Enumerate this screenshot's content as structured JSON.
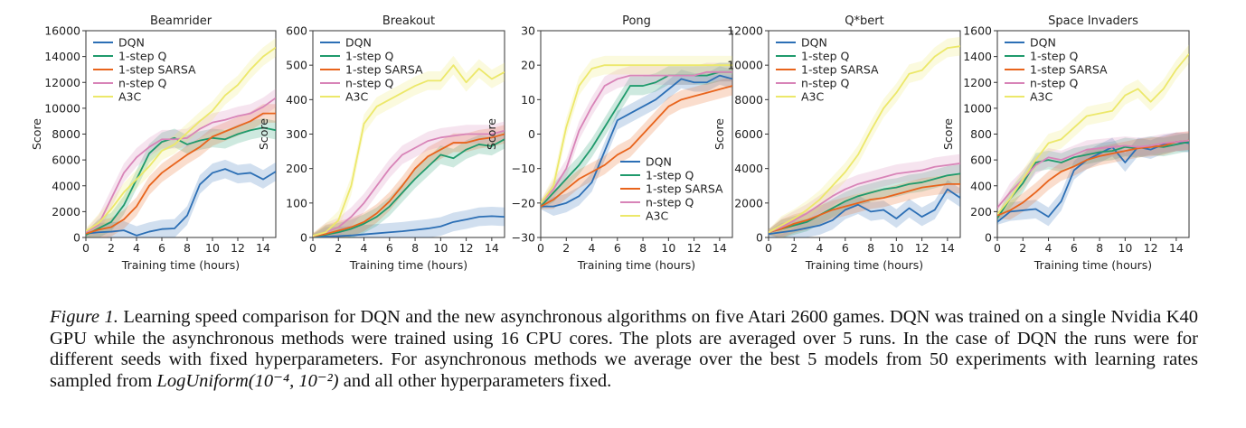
{
  "colors": {
    "DQN": "#2c6fb5",
    "1-step Q": "#1f9a6c",
    "1-step SARSA": "#e8641c",
    "n-step Q": "#d884b8",
    "A3C": "#ece86a"
  },
  "legend_order": [
    "DQN",
    "1-step Q",
    "1-step SARSA",
    "n-step Q",
    "A3C"
  ],
  "chart_data": [
    {
      "type": "line",
      "title": "Beamrider",
      "xlabel": "Training time (hours)",
      "ylabel": "Score",
      "xlim": [
        0,
        15
      ],
      "ylim": [
        0,
        16000
      ],
      "xticks": [
        0,
        2,
        4,
        6,
        8,
        10,
        12,
        14
      ],
      "yticks": [
        0,
        2000,
        4000,
        6000,
        8000,
        10000,
        12000,
        14000,
        16000
      ],
      "legend_position": "upper-left",
      "series": [
        {
          "name": "DQN",
          "x": [
            0,
            1,
            2,
            3,
            4,
            5,
            6,
            7,
            8,
            9,
            10,
            11,
            12,
            13,
            14,
            15
          ],
          "y": [
            300,
            400,
            450,
            550,
            150,
            450,
            650,
            700,
            1700,
            4100,
            5000,
            5300,
            4900,
            5000,
            4500,
            5100
          ]
        },
        {
          "name": "1-step Q",
          "x": [
            0,
            1,
            2,
            3,
            4,
            5,
            6,
            7,
            8,
            9,
            10,
            11,
            12,
            13,
            14,
            15
          ],
          "y": [
            200,
            700,
            1200,
            2500,
            4500,
            6500,
            7400,
            7700,
            7200,
            7500,
            7700,
            7600,
            8000,
            8300,
            8500,
            8300
          ]
        },
        {
          "name": "1-step SARSA",
          "x": [
            0,
            1,
            2,
            3,
            4,
            5,
            6,
            7,
            8,
            9,
            10,
            11,
            12,
            13,
            14,
            15
          ],
          "y": [
            300,
            600,
            800,
            1400,
            2400,
            4000,
            5000,
            5700,
            6400,
            7000,
            7800,
            8200,
            8600,
            9000,
            9600,
            9600
          ]
        },
        {
          "name": "n-step Q",
          "x": [
            0,
            1,
            2,
            3,
            4,
            5,
            6,
            7,
            8,
            9,
            10,
            11,
            12,
            13,
            14,
            15
          ],
          "y": [
            400,
            1000,
            3000,
            5000,
            6200,
            7000,
            7600,
            7600,
            7700,
            8400,
            8900,
            9100,
            9400,
            9600,
            10100,
            10800
          ]
        },
        {
          "name": "A3C",
          "x": [
            0,
            1,
            2,
            3,
            4,
            5,
            6,
            7,
            8,
            9,
            10,
            11,
            12,
            13,
            14,
            15
          ],
          "y": [
            500,
            1100,
            2200,
            3500,
            4500,
            5500,
            6700,
            7200,
            8100,
            9000,
            9800,
            11000,
            11800,
            13000,
            14000,
            14700
          ]
        }
      ]
    },
    {
      "type": "line",
      "title": "Breakout",
      "xlabel": "Training time (hours)",
      "ylabel": "Score",
      "xlim": [
        0,
        15
      ],
      "ylim": [
        0,
        600
      ],
      "xticks": [
        0,
        2,
        4,
        6,
        8,
        10,
        12,
        14
      ],
      "yticks": [
        0,
        100,
        200,
        300,
        400,
        500,
        600
      ],
      "legend_position": "upper-left",
      "series": [
        {
          "name": "DQN",
          "x": [
            0,
            1,
            2,
            3,
            4,
            5,
            6,
            7,
            8,
            9,
            10,
            11,
            12,
            13,
            14,
            15
          ],
          "y": [
            2,
            3,
            4,
            6,
            9,
            12,
            15,
            18,
            22,
            26,
            32,
            45,
            52,
            60,
            62,
            60
          ]
        },
        {
          "name": "1-step Q",
          "x": [
            0,
            1,
            2,
            3,
            4,
            5,
            6,
            7,
            8,
            9,
            10,
            11,
            12,
            13,
            14,
            15
          ],
          "y": [
            2,
            8,
            15,
            25,
            40,
            60,
            90,
            130,
            170,
            205,
            240,
            230,
            255,
            270,
            265,
            285
          ]
        },
        {
          "name": "1-step SARSA",
          "x": [
            0,
            1,
            2,
            3,
            4,
            5,
            6,
            7,
            8,
            9,
            10,
            11,
            12,
            13,
            14,
            15
          ],
          "y": [
            3,
            10,
            20,
            30,
            45,
            70,
            105,
            150,
            200,
            235,
            255,
            275,
            275,
            285,
            290,
            300
          ]
        },
        {
          "name": "n-step Q",
          "x": [
            0,
            1,
            2,
            3,
            4,
            5,
            6,
            7,
            8,
            9,
            10,
            11,
            12,
            13,
            14,
            15
          ],
          "y": [
            4,
            15,
            30,
            60,
            100,
            150,
            200,
            240,
            260,
            280,
            290,
            295,
            300,
            300,
            300,
            310
          ]
        },
        {
          "name": "A3C",
          "x": [
            0,
            1,
            2,
            3,
            4,
            5,
            6,
            7,
            8,
            9,
            10,
            11,
            12,
            13,
            14,
            15
          ],
          "y": [
            5,
            15,
            50,
            150,
            330,
            380,
            400,
            420,
            440,
            455,
            455,
            500,
            450,
            490,
            460,
            480
          ]
        }
      ]
    },
    {
      "type": "line",
      "title": "Pong",
      "xlabel": "Training time (hours)",
      "ylabel": "Score",
      "xlim": [
        0,
        15
      ],
      "ylim": [
        -30,
        30
      ],
      "xticks": [
        0,
        2,
        4,
        6,
        8,
        10,
        12,
        14
      ],
      "yticks": [
        -30,
        -20,
        -10,
        0,
        10,
        20,
        30
      ],
      "legend_position": "lower-right",
      "series": [
        {
          "name": "DQN",
          "x": [
            0,
            1,
            2,
            3,
            4,
            5,
            6,
            7,
            8,
            9,
            10,
            11,
            12,
            13,
            14,
            15
          ],
          "y": [
            -21,
            -21,
            -20,
            -18,
            -14,
            -5,
            4,
            6,
            8,
            10,
            13,
            16,
            15,
            15,
            17,
            16
          ]
        },
        {
          "name": "1-step Q",
          "x": [
            0,
            1,
            2,
            3,
            4,
            5,
            6,
            7,
            8,
            9,
            10,
            11,
            12,
            13,
            14,
            15
          ],
          "y": [
            -21,
            -17,
            -13,
            -9,
            -4,
            2,
            8,
            14,
            14,
            15,
            17,
            17,
            17,
            17,
            18,
            18
          ]
        },
        {
          "name": "1-step SARSA",
          "x": [
            0,
            1,
            2,
            3,
            4,
            5,
            6,
            7,
            8,
            9,
            10,
            11,
            12,
            13,
            14,
            15
          ],
          "y": [
            -21,
            -19,
            -16,
            -13,
            -11,
            -9,
            -6,
            -4,
            0,
            4,
            8,
            10,
            11,
            12,
            13,
            14
          ]
        },
        {
          "name": "n-step Q",
          "x": [
            0,
            1,
            2,
            3,
            4,
            5,
            6,
            7,
            8,
            9,
            10,
            11,
            12,
            13,
            14,
            15
          ],
          "y": [
            -20,
            -16,
            -10,
            1,
            8,
            14,
            16,
            17,
            17,
            17,
            17,
            17,
            17,
            18,
            18,
            18
          ]
        },
        {
          "name": "A3C",
          "x": [
            0,
            1,
            2,
            3,
            4,
            5,
            6,
            7,
            8,
            9,
            10,
            11,
            12,
            13,
            14,
            15
          ],
          "y": [
            -20,
            -15,
            2,
            14,
            19,
            20,
            20,
            20,
            20,
            20,
            20,
            20,
            20,
            20,
            20,
            20
          ]
        }
      ]
    },
    {
      "type": "line",
      "title": "Q*bert",
      "xlabel": "Training time (hours)",
      "ylabel": "Score",
      "xlim": [
        0,
        15
      ],
      "ylim": [
        0,
        12000
      ],
      "xticks": [
        0,
        2,
        4,
        6,
        8,
        10,
        12,
        14
      ],
      "yticks": [
        0,
        2000,
        4000,
        6000,
        8000,
        10000,
        12000
      ],
      "legend_position": "upper-left",
      "series": [
        {
          "name": "DQN",
          "x": [
            0,
            1,
            2,
            3,
            4,
            5,
            6,
            7,
            8,
            9,
            10,
            11,
            12,
            13,
            14,
            15
          ],
          "y": [
            200,
            300,
            400,
            550,
            700,
            1000,
            1600,
            1900,
            1500,
            1600,
            1100,
            1700,
            1200,
            1600,
            2800,
            2300
          ]
        },
        {
          "name": "1-step Q",
          "x": [
            0,
            1,
            2,
            3,
            4,
            5,
            6,
            7,
            8,
            9,
            10,
            11,
            12,
            13,
            14,
            15
          ],
          "y": [
            300,
            500,
            700,
            900,
            1300,
            1700,
            2100,
            2400,
            2600,
            2800,
            2900,
            3100,
            3200,
            3400,
            3600,
            3700
          ]
        },
        {
          "name": "1-step SARSA",
          "x": [
            0,
            1,
            2,
            3,
            4,
            5,
            6,
            7,
            8,
            9,
            10,
            11,
            12,
            13,
            14,
            15
          ],
          "y": [
            300,
            500,
            800,
            1000,
            1300,
            1600,
            1800,
            2000,
            2200,
            2300,
            2500,
            2700,
            2900,
            3000,
            3100,
            3100
          ]
        },
        {
          "name": "n-step Q",
          "x": [
            0,
            1,
            2,
            3,
            4,
            5,
            6,
            7,
            8,
            9,
            10,
            11,
            12,
            13,
            14,
            15
          ],
          "y": [
            300,
            600,
            1000,
            1400,
            1900,
            2400,
            2800,
            3100,
            3300,
            3500,
            3700,
            3800,
            3900,
            4100,
            4200,
            4300
          ]
        },
        {
          "name": "A3C",
          "x": [
            0,
            1,
            2,
            3,
            4,
            5,
            6,
            7,
            8,
            9,
            10,
            11,
            12,
            13,
            14,
            15
          ],
          "y": [
            300,
            700,
            1100,
            1600,
            2200,
            3000,
            3800,
            4800,
            6200,
            7500,
            8400,
            9500,
            9700,
            10500,
            11000,
            11100
          ]
        }
      ]
    },
    {
      "type": "line",
      "title": "Space Invaders",
      "xlabel": "Training time (hours)",
      "ylabel": "Score",
      "xlim": [
        0,
        15
      ],
      "ylim": [
        0,
        1600
      ],
      "xticks": [
        0,
        2,
        4,
        6,
        8,
        10,
        12,
        14
      ],
      "yticks": [
        0,
        200,
        400,
        600,
        800,
        1000,
        1200,
        1400,
        1600
      ],
      "legend_position": "upper-left",
      "series": [
        {
          "name": "DQN",
          "x": [
            0,
            1,
            2,
            3,
            4,
            5,
            6,
            7,
            8,
            9,
            10,
            11,
            12,
            13,
            14,
            15
          ],
          "y": [
            120,
            200,
            210,
            220,
            160,
            280,
            520,
            600,
            650,
            700,
            580,
            700,
            680,
            720,
            740,
            730
          ]
        },
        {
          "name": "1-step Q",
          "x": [
            0,
            1,
            2,
            3,
            4,
            5,
            6,
            7,
            8,
            9,
            10,
            11,
            12,
            13,
            14,
            15
          ],
          "y": [
            150,
            300,
            420,
            580,
            600,
            580,
            620,
            640,
            660,
            670,
            700,
            690,
            710,
            700,
            720,
            740
          ]
        },
        {
          "name": "1-step SARSA",
          "x": [
            0,
            1,
            2,
            3,
            4,
            5,
            6,
            7,
            8,
            9,
            10,
            11,
            12,
            13,
            14,
            15
          ],
          "y": [
            170,
            210,
            270,
            350,
            440,
            510,
            550,
            600,
            630,
            650,
            670,
            690,
            700,
            710,
            740,
            750
          ]
        },
        {
          "name": "n-step Q",
          "x": [
            0,
            1,
            2,
            3,
            4,
            5,
            6,
            7,
            8,
            9,
            10,
            11,
            12,
            13,
            14,
            15
          ],
          "y": [
            230,
            350,
            450,
            560,
            620,
            600,
            640,
            680,
            690,
            700,
            710,
            700,
            710,
            730,
            740,
            750
          ]
        },
        {
          "name": "A3C",
          "x": [
            0,
            1,
            2,
            3,
            4,
            5,
            6,
            7,
            8,
            9,
            10,
            11,
            12,
            13,
            14,
            15
          ],
          "y": [
            180,
            300,
            450,
            600,
            730,
            760,
            850,
            940,
            960,
            980,
            1100,
            1150,
            1050,
            1150,
            1300,
            1420
          ]
        }
      ]
    }
  ],
  "caption": {
    "label": "Figure 1.",
    "text_before_formula": "Learning speed comparison for DQN and the new asynchronous algorithms on five Atari 2600 games. DQN was trained on a single Nvidia K40 GPU while the asynchronous methods were trained using 16 CPU cores. The plots are averaged over 5 runs. In the case of DQN the runs were for different seeds with fixed hyperparameters. For asynchronous methods we average over the best 5 models from 50 experiments with learning rates sampled from",
    "formula": "LogUniform(10⁻⁴, 10⁻²)",
    "text_after_formula": "and all other hyperparameters fixed."
  }
}
